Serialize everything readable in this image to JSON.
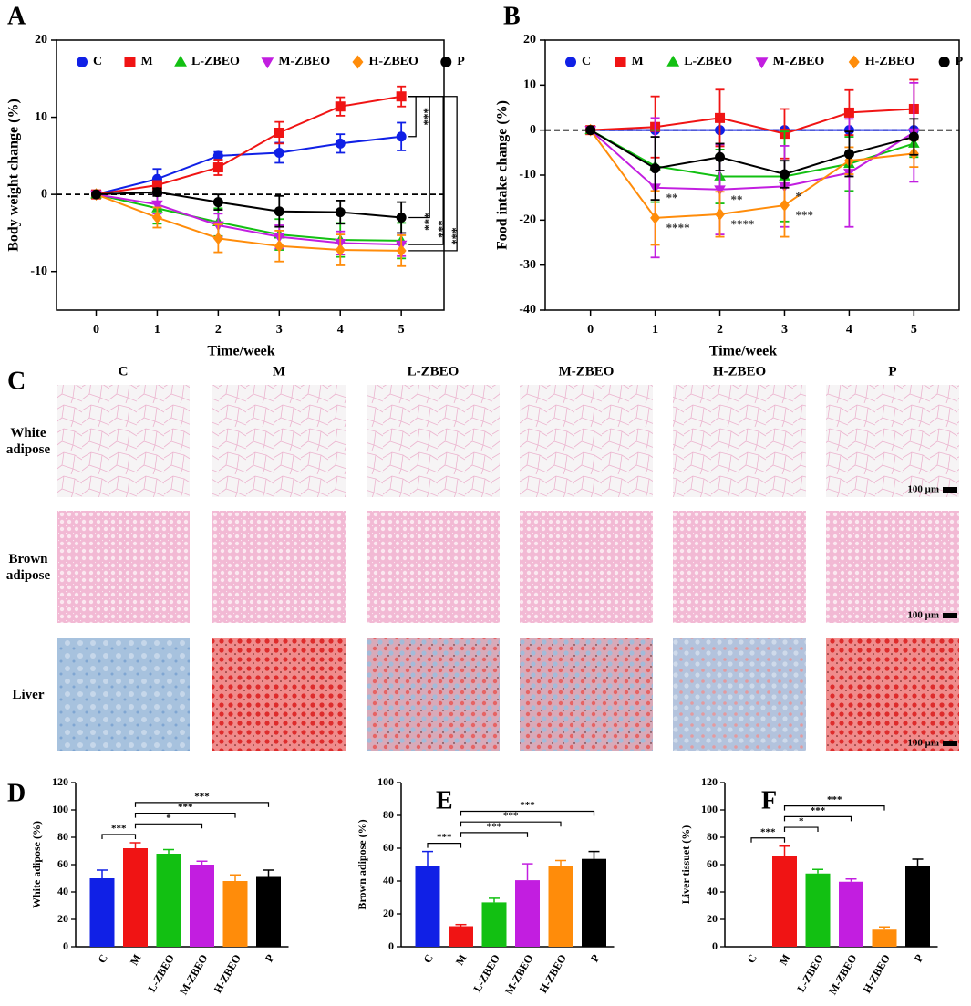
{
  "chart_data": [
    {
      "panel": "A",
      "type": "line",
      "x": [
        0,
        1,
        2,
        3,
        4,
        5
      ],
      "xlim": [
        -0.65,
        5.7
      ],
      "xticks": [
        0,
        1,
        2,
        3,
        4,
        5
      ],
      "ylim": [
        -15,
        20
      ],
      "yticks": [
        -10,
        0,
        10,
        20
      ],
      "xlabel": "Time/week",
      "ylabel": "Body weight change (%)",
      "reference_line": 0,
      "series": [
        {
          "name": "C",
          "color": "#1020e6",
          "marker": "circle",
          "values": [
            0,
            2,
            5,
            5.4,
            6.6,
            7.5
          ],
          "errors": [
            0,
            1.3,
            0.5,
            1.3,
            1.2,
            1.8
          ]
        },
        {
          "name": "M",
          "color": "#f01414",
          "marker": "square",
          "values": [
            0,
            1.2,
            3.5,
            8,
            11.4,
            12.7
          ],
          "errors": [
            0,
            0.5,
            1,
            1.4,
            1.2,
            1.3
          ]
        },
        {
          "name": "L-ZBEO",
          "color": "#12c012",
          "marker": "triangle-up",
          "values": [
            0,
            -1.8,
            -3.6,
            -5.2,
            -5.9,
            -6
          ],
          "errors": [
            0,
            2,
            1.8,
            2,
            2.2,
            2.3
          ]
        },
        {
          "name": "M-ZBEO",
          "color": "#c21ee0",
          "marker": "triangle-down",
          "values": [
            0,
            -1.3,
            -4,
            -5.5,
            -6.3,
            -6.5
          ],
          "errors": [
            0,
            1.2,
            1.5,
            1.5,
            1.5,
            1.5
          ]
        },
        {
          "name": "H-ZBEO",
          "color": "#ff8c0a",
          "marker": "diamond",
          "values": [
            0,
            -3,
            -5.7,
            -6.7,
            -7.2,
            -7.3
          ],
          "errors": [
            0,
            1.3,
            1.8,
            2,
            2,
            2
          ]
        },
        {
          "name": "P",
          "color": "#000000",
          "marker": "circle",
          "values": [
            0,
            0.3,
            -1,
            -2.2,
            -2.3,
            -3
          ],
          "errors": [
            0,
            0.5,
            1,
            2,
            1.5,
            2
          ]
        }
      ],
      "brackets": [
        {
          "from": "M",
          "to": "C",
          "label": "***"
        },
        {
          "from": "M",
          "to": "P",
          "label": "***"
        },
        {
          "from": "M",
          "to": "M-ZBEO",
          "label": "***"
        },
        {
          "from": "M",
          "to": "H-ZBEO",
          "label": "***"
        }
      ]
    },
    {
      "panel": "B",
      "type": "line",
      "x": [
        0,
        1,
        2,
        3,
        4,
        5
      ],
      "xlim": [
        -0.7,
        5.7
      ],
      "xticks": [
        0,
        1,
        2,
        3,
        4,
        5
      ],
      "ylim": [
        -40,
        20
      ],
      "yticks": [
        -40,
        -30,
        -20,
        -10,
        0,
        10,
        20
      ],
      "xlabel": "Time/week",
      "ylabel": "Food intake change (%)",
      "reference_line": 0,
      "series": [
        {
          "name": "C",
          "color": "#1020e6",
          "marker": "circle",
          "values": [
            0,
            0,
            0,
            0,
            0,
            0
          ],
          "errors": [
            0,
            0,
            0,
            0,
            0,
            0
          ]
        },
        {
          "name": "M",
          "color": "#f01414",
          "marker": "square",
          "values": [
            0,
            0.7,
            2.7,
            -0.8,
            3.9,
            4.7
          ],
          "errors": [
            0,
            6.8,
            6.3,
            5.5,
            5,
            6.5
          ]
        },
        {
          "name": "L-ZBEO",
          "color": "#12c012",
          "marker": "triangle-up",
          "values": [
            0,
            -8,
            -10.3,
            -10.3,
            -7.5,
            -3
          ],
          "errors": [
            0,
            8,
            6,
            10,
            6,
            3
          ]
        },
        {
          "name": "M-ZBEO",
          "color": "#c21ee0",
          "marker": "triangle-down",
          "values": [
            0,
            -12.8,
            -13.2,
            -12.5,
            -9.5,
            -0.5
          ],
          "errors": [
            0,
            15.5,
            10,
            9,
            12,
            11
          ]
        },
        {
          "name": "H-ZBEO",
          "color": "#ff8c0a",
          "marker": "diamond",
          "values": [
            0,
            -19.5,
            -18.7,
            -16.7,
            -6.8,
            -5.2
          ],
          "errors": [
            0,
            6,
            5,
            7,
            3,
            3
          ]
        },
        {
          "name": "P",
          "color": "#000000",
          "marker": "circle",
          "values": [
            0,
            -8.5,
            -6,
            -9.8,
            -5.3,
            -1.5
          ],
          "errors": [
            0,
            7,
            3,
            3,
            5,
            4
          ]
        }
      ],
      "annotations": [
        {
          "series": "M-ZBEO",
          "x": 1,
          "text": "**"
        },
        {
          "series": "H-ZBEO",
          "x": 1,
          "text": "****"
        },
        {
          "series": "M-ZBEO",
          "x": 2,
          "text": "**"
        },
        {
          "series": "H-ZBEO",
          "x": 2,
          "text": "****"
        },
        {
          "series": "M-ZBEO",
          "x": 3,
          "text": "*"
        },
        {
          "series": "H-ZBEO",
          "x": 3,
          "text": "***"
        }
      ]
    },
    {
      "panel": "D",
      "type": "bar",
      "categories": [
        "C",
        "M",
        "L-ZBEO",
        "M-ZBEO",
        "H-ZBEO",
        "P"
      ],
      "values": [
        50,
        72,
        68,
        60,
        48,
        51
      ],
      "errors": [
        6,
        4,
        3,
        2.5,
        4.5,
        5
      ],
      "colors": [
        "#1020e6",
        "#f01414",
        "#12c012",
        "#c21ee0",
        "#ff8c0a",
        "#000000"
      ],
      "ylim": [
        0,
        120
      ],
      "yticks": [
        0,
        20,
        40,
        60,
        80,
        100,
        120
      ],
      "ylabel": "White adipose (%)",
      "brackets": [
        {
          "from": "C",
          "to": "M",
          "label": "***"
        },
        {
          "from": "M",
          "to": "M-ZBEO",
          "label": "*"
        },
        {
          "from": "M",
          "to": "H-ZBEO",
          "label": "***"
        },
        {
          "from": "M",
          "to": "P",
          "label": "***"
        }
      ]
    },
    {
      "panel": "E",
      "type": "bar",
      "categories": [
        "C",
        "M",
        "L-ZBEO",
        "M-ZBEO",
        "H-ZBEO",
        "P"
      ],
      "values": [
        49,
        12.5,
        27,
        40.5,
        49,
        53.5
      ],
      "errors": [
        9,
        1,
        2.5,
        10,
        3.5,
        4.5
      ],
      "colors": [
        "#1020e6",
        "#f01414",
        "#12c012",
        "#c21ee0",
        "#ff8c0a",
        "#000000"
      ],
      "ylim": [
        0,
        100
      ],
      "yticks": [
        0,
        20,
        40,
        60,
        80,
        100
      ],
      "ylabel": "Brown adipose (%)",
      "brackets": [
        {
          "from": "C",
          "to": "M",
          "label": "***"
        },
        {
          "from": "M",
          "to": "M-ZBEO",
          "label": "***"
        },
        {
          "from": "M",
          "to": "H-ZBEO",
          "label": "***"
        },
        {
          "from": "M",
          "to": "P",
          "label": "***"
        }
      ]
    },
    {
      "panel": "F",
      "type": "bar",
      "categories": [
        "C",
        "M",
        "L-ZBEO",
        "M-ZBEO",
        "H-ZBEO",
        "P"
      ],
      "values": [
        0,
        66.5,
        53.5,
        47.5,
        12.5,
        59
      ],
      "errors": [
        0,
        7,
        3,
        2,
        2,
        5
      ],
      "colors": [
        "#1020e6",
        "#f01414",
        "#12c012",
        "#c21ee0",
        "#ff8c0a",
        "#000000"
      ],
      "ylim": [
        0,
        120
      ],
      "yticks": [
        0,
        20,
        40,
        60,
        80,
        100,
        120
      ],
      "ylabel": "Liver tissuet (%)",
      "brackets": [
        {
          "from": "C",
          "to": "M",
          "label": "***"
        },
        {
          "from": "M",
          "to": "L-ZBEO",
          "label": "*"
        },
        {
          "from": "M",
          "to": "M-ZBEO",
          "label": "***"
        },
        {
          "from": "M",
          "to": "H-ZBEO",
          "label": "***"
        }
      ]
    }
  ],
  "histology": {
    "panel": "C",
    "columns": [
      "C",
      "M",
      "L-ZBEO",
      "M-ZBEO",
      "H-ZBEO",
      "P"
    ],
    "rows": [
      "White adipose",
      "Brown adipose",
      "Liver"
    ],
    "scale_bar": "100 μm"
  }
}
